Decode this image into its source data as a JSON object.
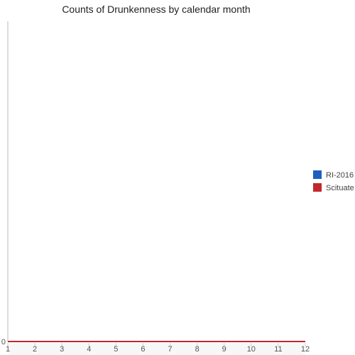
{
  "chart_data": {
    "type": "line",
    "title": "Counts of Drunkenness by calendar month",
    "xlabel": "",
    "ylabel": "",
    "x": [
      1,
      2,
      3,
      4,
      5,
      6,
      7,
      8,
      9,
      10,
      11,
      12
    ],
    "xlim": [
      1,
      12
    ],
    "ylim": [
      0,
      1
    ],
    "y_ticks": [
      0
    ],
    "grid": false,
    "legend_position": "right",
    "series": [
      {
        "name": "RI-2016",
        "color": "#1f5fbf",
        "values": [
          0,
          0,
          0,
          0,
          0,
          0,
          0,
          0,
          0,
          0,
          0,
          0
        ]
      },
      {
        "name": "Scituate",
        "color": "#c0282d",
        "values": [
          0,
          0,
          0,
          0,
          0,
          0,
          0,
          0,
          0,
          0,
          0,
          0
        ]
      }
    ]
  }
}
